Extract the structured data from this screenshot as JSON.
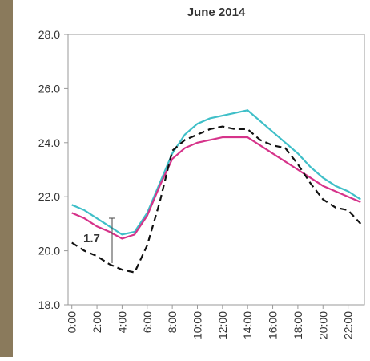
{
  "chart_data": {
    "type": "line",
    "title": "June 2014",
    "x": [
      0,
      1,
      2,
      3,
      4,
      5,
      6,
      7,
      8,
      9,
      10,
      11,
      12,
      13,
      14,
      15,
      16,
      17,
      18,
      19,
      20,
      21,
      22,
      23
    ],
    "series": [
      {
        "color": "#3fbfc8",
        "dash": false,
        "values": [
          21.7,
          21.5,
          21.2,
          20.9,
          20.6,
          20.7,
          21.4,
          22.5,
          23.6,
          24.3,
          24.7,
          24.9,
          25.0,
          25.1,
          25.2,
          24.8,
          24.4,
          24.0,
          23.6,
          23.1,
          22.7,
          22.4,
          22.2,
          21.9
        ]
      },
      {
        "color": "#d6338a",
        "dash": false,
        "values": [
          21.4,
          21.2,
          20.9,
          20.7,
          20.45,
          20.6,
          21.3,
          22.4,
          23.4,
          23.8,
          24.0,
          24.1,
          24.2,
          24.2,
          24.2,
          23.9,
          23.6,
          23.3,
          23.0,
          22.7,
          22.4,
          22.2,
          22.0,
          21.8
        ]
      },
      {
        "color": "#111111",
        "dash": true,
        "values": [
          20.3,
          20.0,
          19.8,
          19.5,
          19.3,
          19.2,
          20.2,
          21.8,
          23.7,
          24.1,
          24.3,
          24.5,
          24.6,
          24.5,
          24.5,
          24.1,
          23.9,
          23.8,
          23.2,
          22.5,
          21.9,
          21.6,
          21.5,
          21.0
        ]
      }
    ],
    "annotation": "1.7",
    "xlim": [
      -0.3,
      23.3
    ],
    "ylim": [
      18,
      28
    ],
    "xticks": [
      {
        "value": 0,
        "label": "0:00"
      },
      {
        "value": 2,
        "label": "2:00"
      },
      {
        "value": 4,
        "label": "4:00"
      },
      {
        "value": 6,
        "label": "6:00"
      },
      {
        "value": 8,
        "label": "8:00"
      },
      {
        "value": 10,
        "label": "10:00"
      },
      {
        "value": 12,
        "label": "12:00"
      },
      {
        "value": 14,
        "label": "14:00"
      },
      {
        "value": 16,
        "label": "16:00"
      },
      {
        "value": 18,
        "label": "18:00"
      },
      {
        "value": 20,
        "label": "20:00"
      },
      {
        "value": 22,
        "label": "22:00"
      }
    ],
    "yticks": [
      {
        "value": 18,
        "label": "18.0"
      },
      {
        "value": 20,
        "label": "20.0"
      },
      {
        "value": 22,
        "label": "22.0"
      },
      {
        "value": 24,
        "label": "24.0"
      },
      {
        "value": 26,
        "label": "26.0"
      },
      {
        "value": 28,
        "label": "28.0"
      }
    ]
  }
}
